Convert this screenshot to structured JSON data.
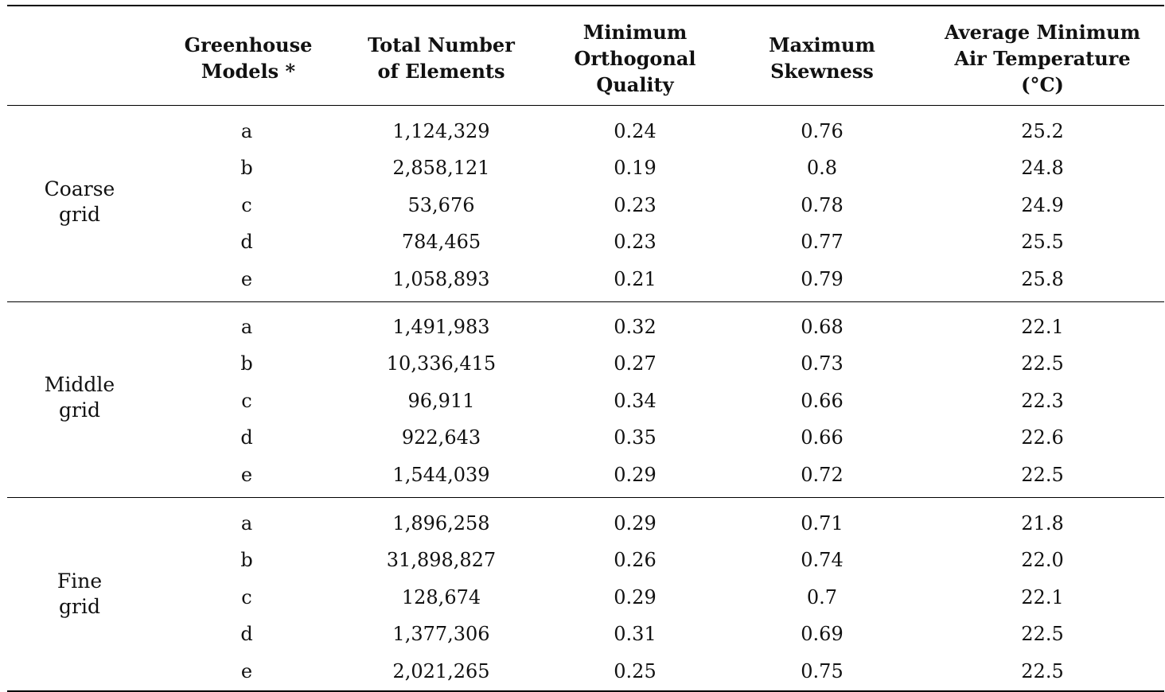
{
  "headers": {
    "model": [
      "Greenhouse",
      "Models *"
    ],
    "elements": [
      "Total Number",
      "of Elements"
    ],
    "orthogonal": [
      "Minimum",
      "Orthogonal",
      "Quality"
    ],
    "skewness": [
      "Maximum",
      "Skewness"
    ],
    "temperature": [
      "Average Minimum",
      "Air Temperature (°C)"
    ]
  },
  "groups": [
    {
      "label": [
        "Coarse",
        "grid"
      ],
      "rows": [
        {
          "model": "a",
          "elements": "1,124,329",
          "orthogonal": "0.24",
          "skewness": "0.76",
          "temperature": "25.2"
        },
        {
          "model": "b",
          "elements": "2,858,121",
          "orthogonal": "0.19",
          "skewness": "0.8",
          "temperature": "24.8"
        },
        {
          "model": "c",
          "elements": "53,676",
          "orthogonal": "0.23",
          "skewness": "0.78",
          "temperature": "24.9"
        },
        {
          "model": "d",
          "elements": "784,465",
          "orthogonal": "0.23",
          "skewness": "0.77",
          "temperature": "25.5"
        },
        {
          "model": "e",
          "elements": "1,058,893",
          "orthogonal": "0.21",
          "skewness": "0.79",
          "temperature": "25.8"
        }
      ]
    },
    {
      "label": [
        "Middle",
        "grid"
      ],
      "rows": [
        {
          "model": "a",
          "elements": "1,491,983",
          "orthogonal": "0.32",
          "skewness": "0.68",
          "temperature": "22.1"
        },
        {
          "model": "b",
          "elements": "10,336,415",
          "orthogonal": "0.27",
          "skewness": "0.73",
          "temperature": "22.5"
        },
        {
          "model": "c",
          "elements": "96,911",
          "orthogonal": "0.34",
          "skewness": "0.66",
          "temperature": "22.3"
        },
        {
          "model": "d",
          "elements": "922,643",
          "orthogonal": "0.35",
          "skewness": "0.66",
          "temperature": "22.6"
        },
        {
          "model": "e",
          "elements": "1,544,039",
          "orthogonal": "0.29",
          "skewness": "0.72",
          "temperature": "22.5"
        }
      ]
    },
    {
      "label": [
        "Fine",
        "grid"
      ],
      "rows": [
        {
          "model": "a",
          "elements": "1,896,258",
          "orthogonal": "0.29",
          "skewness": "0.71",
          "temperature": "21.8"
        },
        {
          "model": "b",
          "elements": "31,898,827",
          "orthogonal": "0.26",
          "skewness": "0.74",
          "temperature": "22.0"
        },
        {
          "model": "c",
          "elements": "128,674",
          "orthogonal": "0.29",
          "skewness": "0.7",
          "temperature": "22.1"
        },
        {
          "model": "d",
          "elements": "1,377,306",
          "orthogonal": "0.31",
          "skewness": "0.69",
          "temperature": "22.5"
        },
        {
          "model": "e",
          "elements": "2,021,265",
          "orthogonal": "0.25",
          "skewness": "0.75",
          "temperature": "22.5"
        }
      ]
    }
  ]
}
